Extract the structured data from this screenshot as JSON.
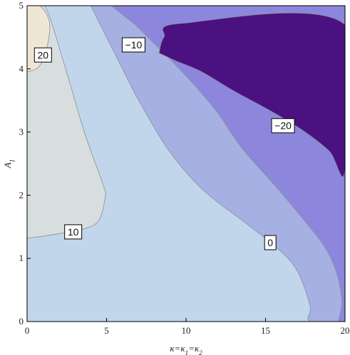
{
  "chart_data": {
    "type": "contour",
    "xlabel": "κ=κ1=κ2",
    "xlabel_parts": [
      "κ=κ",
      "1",
      "=κ",
      "2"
    ],
    "ylabel": "A1",
    "ylabel_parts": [
      "A",
      "1"
    ],
    "xlim": [
      0,
      20
    ],
    "ylim": [
      0,
      5
    ],
    "x_ticks": [
      0,
      5,
      10,
      15,
      20
    ],
    "y_ticks": [
      0,
      1,
      2,
      3,
      4,
      5
    ],
    "x_tick_labels": [
      "0",
      "5",
      "10",
      "15",
      "20"
    ],
    "y_tick_labels": [
      "0",
      "1",
      "2",
      "3",
      "4",
      "5"
    ],
    "grid": false,
    "contour_levels": [
      -20,
      -10,
      0,
      10,
      20
    ],
    "contour_labels": [
      {
        "text": "20",
        "x": 1.0,
        "y": 4.22
      },
      {
        "text": "−10",
        "x": 6.7,
        "y": 4.38
      },
      {
        "text": "−20",
        "x": 16.1,
        "y": 3.1
      },
      {
        "text": "10",
        "x": 2.9,
        "y": 1.42
      },
      {
        "text": "0",
        "x": 15.3,
        "y": 1.25
      }
    ],
    "regions": [
      {
        "name": "region-0-to-10",
        "color": "#c1d6ea",
        "boundary": [
          [
            0,
            0
          ],
          [
            20,
            0
          ],
          [
            20,
            5
          ],
          [
            0,
            5
          ]
        ]
      },
      {
        "name": "region-10-to-20",
        "color": "#d8dede",
        "boundary": [
          [
            0,
            5
          ],
          [
            1.1,
            5
          ],
          [
            2.3,
            4.1
          ],
          [
            3.6,
            3.0
          ],
          [
            4.8,
            2.15
          ],
          [
            4.9,
            1.95
          ],
          [
            4.5,
            1.6
          ],
          [
            3.6,
            1.47
          ],
          [
            1.5,
            1.37
          ],
          [
            0,
            1.32
          ]
        ]
      },
      {
        "name": "region-above-20",
        "color": "#f0e6d4",
        "boundary": [
          [
            0,
            5
          ],
          [
            0.8,
            5
          ],
          [
            1.4,
            4.75
          ],
          [
            1.3,
            4.4
          ],
          [
            0.8,
            4.05
          ],
          [
            0,
            3.95
          ]
        ]
      },
      {
        "name": "region-minus-10-to-0",
        "color": "#a6b0e2",
        "boundary": [
          [
            4.0,
            5
          ],
          [
            20,
            5
          ],
          [
            20,
            0
          ],
          [
            17.8,
            0
          ],
          [
            17.8,
            0.25
          ],
          [
            17.0,
            0.8
          ],
          [
            15.8,
            1.15
          ],
          [
            13.8,
            1.55
          ],
          [
            11.0,
            2.1
          ],
          [
            8.8,
            2.75
          ],
          [
            6.8,
            3.6
          ]
        ]
      },
      {
        "name": "region-minus-20-to-minus-10",
        "color": "#8c87dc",
        "boundary": [
          [
            5.3,
            5
          ],
          [
            20,
            5
          ],
          [
            20,
            0
          ],
          [
            19.6,
            0
          ],
          [
            19.8,
            0.3
          ],
          [
            19.5,
            0.75
          ],
          [
            18.8,
            1.15
          ],
          [
            17.6,
            1.55
          ],
          [
            15.6,
            2.15
          ],
          [
            13.5,
            2.75
          ],
          [
            12.0,
            3.3
          ],
          [
            10.5,
            3.75
          ],
          [
            8.8,
            4.2
          ],
          [
            6.8,
            4.7
          ]
        ]
      },
      {
        "name": "region-below-minus-20",
        "color": "#4b1180",
        "boundary": [
          [
            8.3,
            4.25
          ],
          [
            8.6,
            4.5
          ],
          [
            9.7,
            4.72
          ],
          [
            20,
            4.7
          ],
          [
            20,
            2.4
          ],
          [
            19.0,
            2.7
          ],
          [
            17.2,
            3.05
          ],
          [
            15.2,
            3.35
          ],
          [
            13.0,
            3.65
          ],
          [
            11.0,
            3.95
          ],
          [
            9.4,
            4.12
          ]
        ]
      }
    ]
  }
}
